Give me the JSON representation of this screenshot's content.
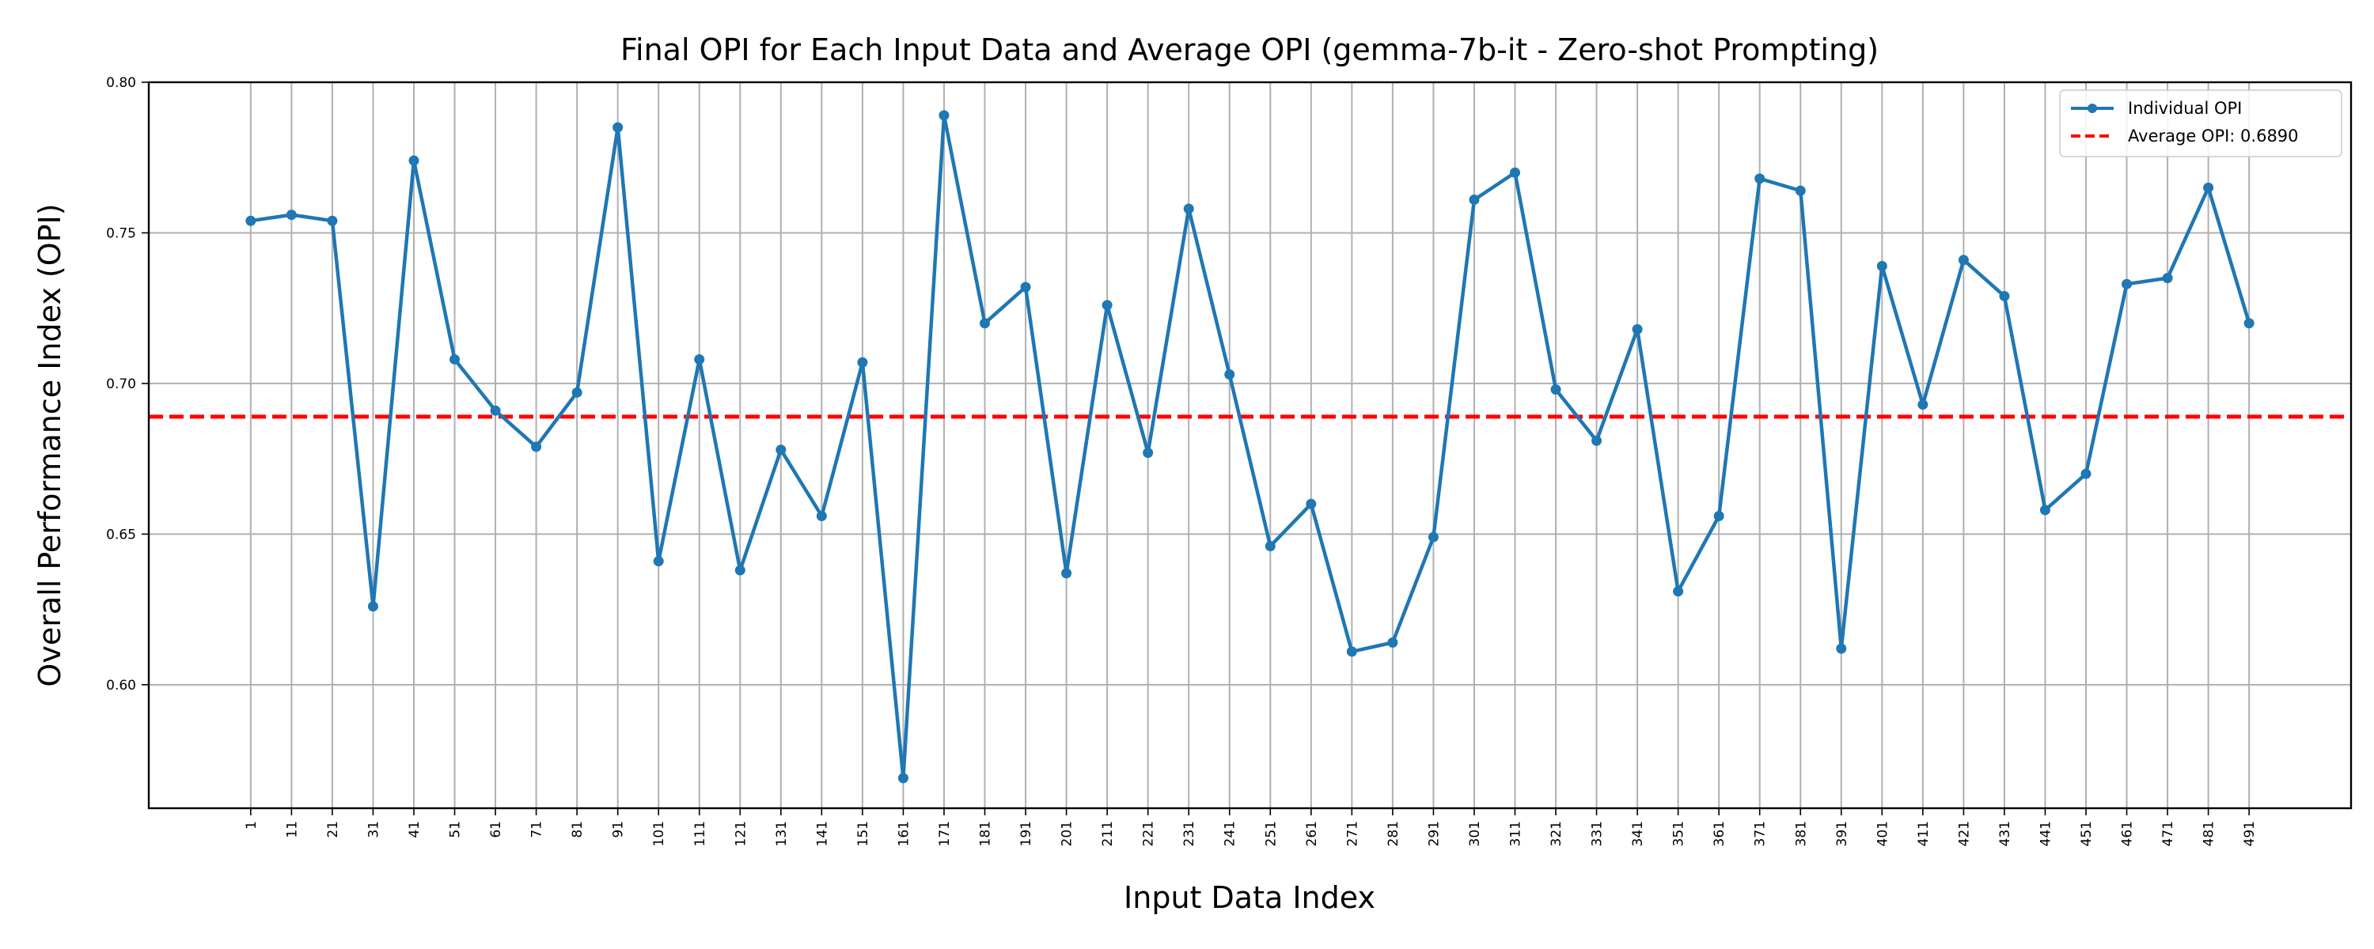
{
  "chart_data": {
    "type": "line",
    "title": "Final OPI for Each Input Data and Average OPI (gemma-7b-it - Zero-shot Prompting)",
    "xlabel": "Input Data Index",
    "ylabel": "Overall Performance Index (OPI)",
    "x": [
      1,
      11,
      21,
      31,
      41,
      51,
      61,
      71,
      81,
      91,
      101,
      111,
      121,
      131,
      141,
      151,
      161,
      171,
      181,
      191,
      201,
      211,
      221,
      231,
      241,
      251,
      261,
      271,
      281,
      291,
      301,
      311,
      321,
      331,
      341,
      351,
      361,
      371,
      381,
      391,
      401,
      411,
      421,
      431,
      441,
      451,
      461,
      471,
      481,
      491
    ],
    "x_tick_labels": [
      "1",
      "11",
      "21",
      "31",
      "41",
      "51",
      "61",
      "71",
      "81",
      "91",
      "101",
      "111",
      "121",
      "131",
      "141",
      "151",
      "161",
      "171",
      "181",
      "191",
      "201",
      "211",
      "221",
      "231",
      "241",
      "251",
      "261",
      "271",
      "281",
      "291",
      "301",
      "311",
      "321",
      "331",
      "341",
      "351",
      "361",
      "371",
      "381",
      "391",
      "401",
      "411",
      "421",
      "431",
      "441",
      "451",
      "461",
      "471",
      "481",
      "491"
    ],
    "series": [
      {
        "name": "Individual OPI",
        "color": "#1f77b4",
        "values": [
          0.754,
          0.756,
          0.754,
          0.626,
          0.774,
          0.708,
          0.691,
          0.679,
          0.697,
          0.785,
          0.641,
          0.708,
          0.638,
          0.678,
          0.656,
          0.707,
          0.569,
          0.789,
          0.72,
          0.732,
          0.637,
          0.726,
          0.677,
          0.758,
          0.703,
          0.646,
          0.66,
          0.611,
          0.614,
          0.649,
          0.761,
          0.77,
          0.698,
          0.681,
          0.718,
          0.631,
          0.656,
          0.768,
          0.764,
          0.612,
          0.739,
          0.693,
          0.741,
          0.729,
          0.658,
          0.67,
          0.733,
          0.735,
          0.765,
          0.72
        ]
      }
    ],
    "average": {
      "name": "Average OPI: 0.6890",
      "value": 0.689,
      "color": "#ff0000"
    },
    "ylim": [
      0.559,
      0.8
    ],
    "y_ticks": [
      0.6,
      0.65,
      0.7,
      0.75,
      0.8
    ],
    "y_tick_labels": [
      "0.60",
      "0.65",
      "0.70",
      "0.75",
      "0.80"
    ],
    "grid": true,
    "legend_position": "top-right"
  }
}
